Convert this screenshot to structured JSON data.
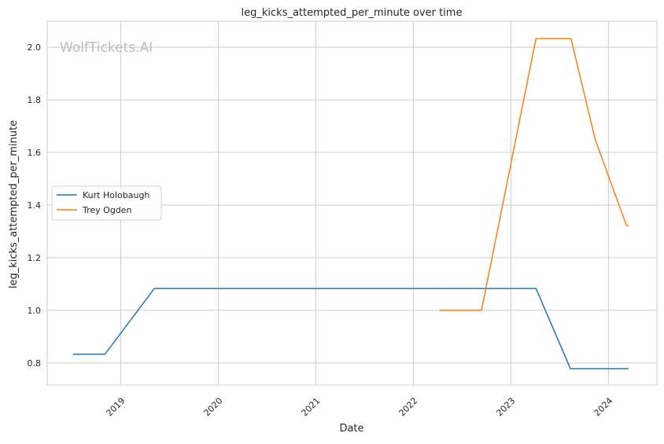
{
  "chart_data": {
    "type": "line",
    "title": "leg_kicks_attempted_per_minute over time",
    "xlabel": "Date",
    "ylabel": "leg_kicks_attempted_per_minute",
    "watermark": "WolfTickets.AI",
    "xlim": [
      "2018-04-01",
      "2024-07-01"
    ],
    "ylim": [
      0.716,
      2.099
    ],
    "x_ticks": [
      "2019",
      "2020",
      "2021",
      "2022",
      "2023",
      "2024"
    ],
    "y_ticks": [
      "0.8",
      "1.0",
      "1.2",
      "1.4",
      "1.6",
      "1.8",
      "2.0"
    ],
    "grid": true,
    "legend_position": "center-left",
    "series": [
      {
        "name": "Kurt Holobaugh",
        "color": "#1f77b4",
        "x": [
          "2018-07-07",
          "2018-11-03",
          "2019-05-07",
          "2023-04-05",
          "2023-08-12",
          "2024-03-16"
        ],
        "y": [
          0.833,
          0.833,
          1.083,
          1.083,
          0.778,
          0.778
        ]
      },
      {
        "name": "Trey Ogden",
        "color": "#ff7f0e",
        "x": [
          "2022-04-09",
          "2022-09-13",
          "2023-04-05",
          "2023-08-14",
          "2023-11-13",
          "2024-03-09",
          "2024-03-16"
        ],
        "y": [
          1.0,
          1.0,
          2.033,
          2.033,
          1.648,
          1.322,
          1.322
        ]
      }
    ]
  }
}
